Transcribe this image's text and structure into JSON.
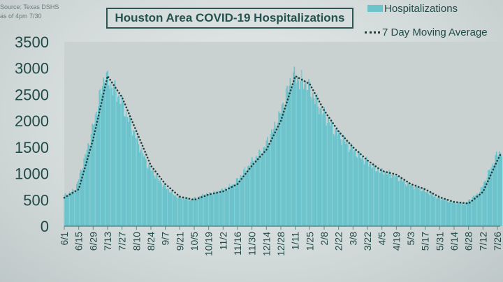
{
  "source": {
    "line1": "Source: Texas DSHS",
    "line2": "as of 4pm 7/30"
  },
  "colors": {
    "bars": "#6cc3cc",
    "average": "#1f3f3c",
    "text": "#1f4a47"
  },
  "chart_data": {
    "type": "bar",
    "title": "Houston Area COVID-19 Hospitalizations",
    "legend": {
      "placement": "top-right",
      "entries": [
        "Hospitalizations",
        "7 Day Moving Average"
      ]
    },
    "ylim": [
      0,
      3500
    ],
    "yticks": [
      0,
      500,
      1000,
      1500,
      2000,
      2500,
      3000,
      3500
    ],
    "xticks": [
      "6/1",
      "6/15",
      "6/29",
      "7/13",
      "7/27",
      "8/10",
      "8/24",
      "9/7",
      "9/21",
      "10/5",
      "10/19",
      "11/2",
      "11/16",
      "11/30",
      "12/14",
      "12/28",
      "1/11",
      "1/25",
      "2/8",
      "2/22",
      "3/8",
      "3/22",
      "4/5",
      "4/19",
      "5/3",
      "5/17",
      "5/31",
      "6/14",
      "6/28",
      "7/12",
      "7/26"
    ],
    "grid": false,
    "series": [
      {
        "name": "7 Day Moving Average",
        "type": "line-dotted",
        "x": [
          "6/1",
          "6/15",
          "6/29",
          "7/13",
          "7/27",
          "8/10",
          "8/24",
          "9/7",
          "9/21",
          "10/5",
          "10/19",
          "11/2",
          "11/16",
          "11/30",
          "12/14",
          "12/28",
          "1/11",
          "1/25",
          "2/8",
          "2/22",
          "3/8",
          "3/22",
          "4/5",
          "4/19",
          "5/3",
          "5/17",
          "5/31",
          "6/14",
          "6/28",
          "7/12",
          "7/26",
          "7/30"
        ],
        "values": [
          540,
          700,
          1650,
          2850,
          2450,
          1800,
          1150,
          800,
          560,
          500,
          600,
          660,
          800,
          1150,
          1450,
          2000,
          2850,
          2700,
          2200,
          1800,
          1500,
          1250,
          1050,
          980,
          800,
          700,
          550,
          460,
          430,
          650,
          1250,
          1400
        ]
      },
      {
        "name": "Hospitalizations",
        "type": "bar",
        "note_values_follow_average": true
      }
    ]
  }
}
